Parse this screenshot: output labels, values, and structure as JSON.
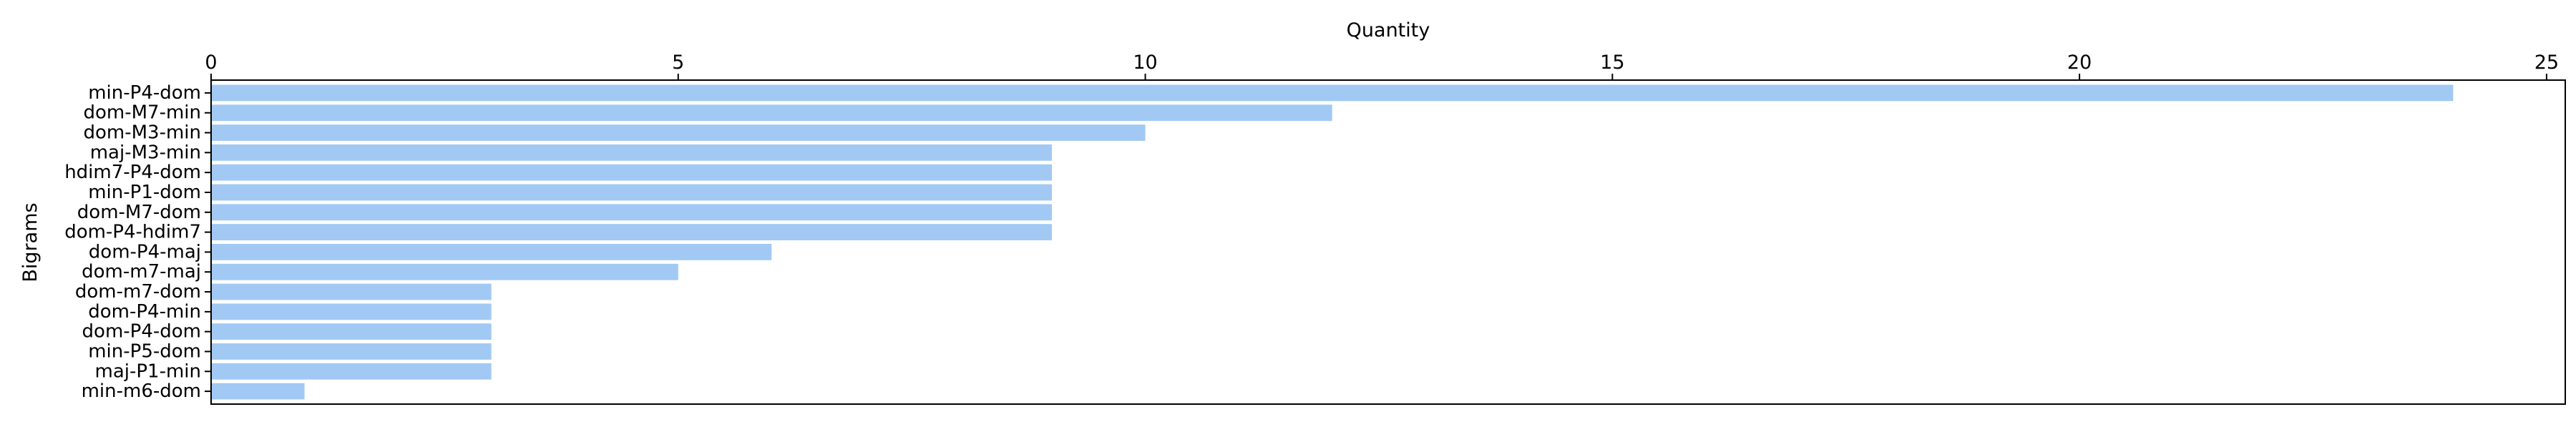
{
  "chart_data": {
    "type": "bar",
    "orientation": "horizontal",
    "title": "",
    "xlabel": "Quantity",
    "ylabel": "Bigrams",
    "xlim": [
      0,
      25.2
    ],
    "xticks": [
      0,
      5,
      10,
      15,
      20,
      25
    ],
    "x_axis_position": "top",
    "grid": false,
    "bar_color": "#a1c9f4",
    "categories": [
      "min-P4-dom",
      "dom-M7-min",
      "dom-M3-min",
      "maj-M3-min",
      "hdim7-P4-dom",
      "min-P1-dom",
      "dom-M7-dom",
      "dom-P4-hdim7",
      "dom-P4-maj",
      "dom-m7-maj",
      "dom-m7-dom",
      "dom-P4-min",
      "dom-P4-dom",
      "min-P5-dom",
      "maj-P1-min",
      "min-m6-dom"
    ],
    "values": [
      24,
      12,
      10,
      9,
      9,
      9,
      9,
      9,
      6,
      5,
      3,
      3,
      3,
      3,
      3,
      1
    ]
  }
}
